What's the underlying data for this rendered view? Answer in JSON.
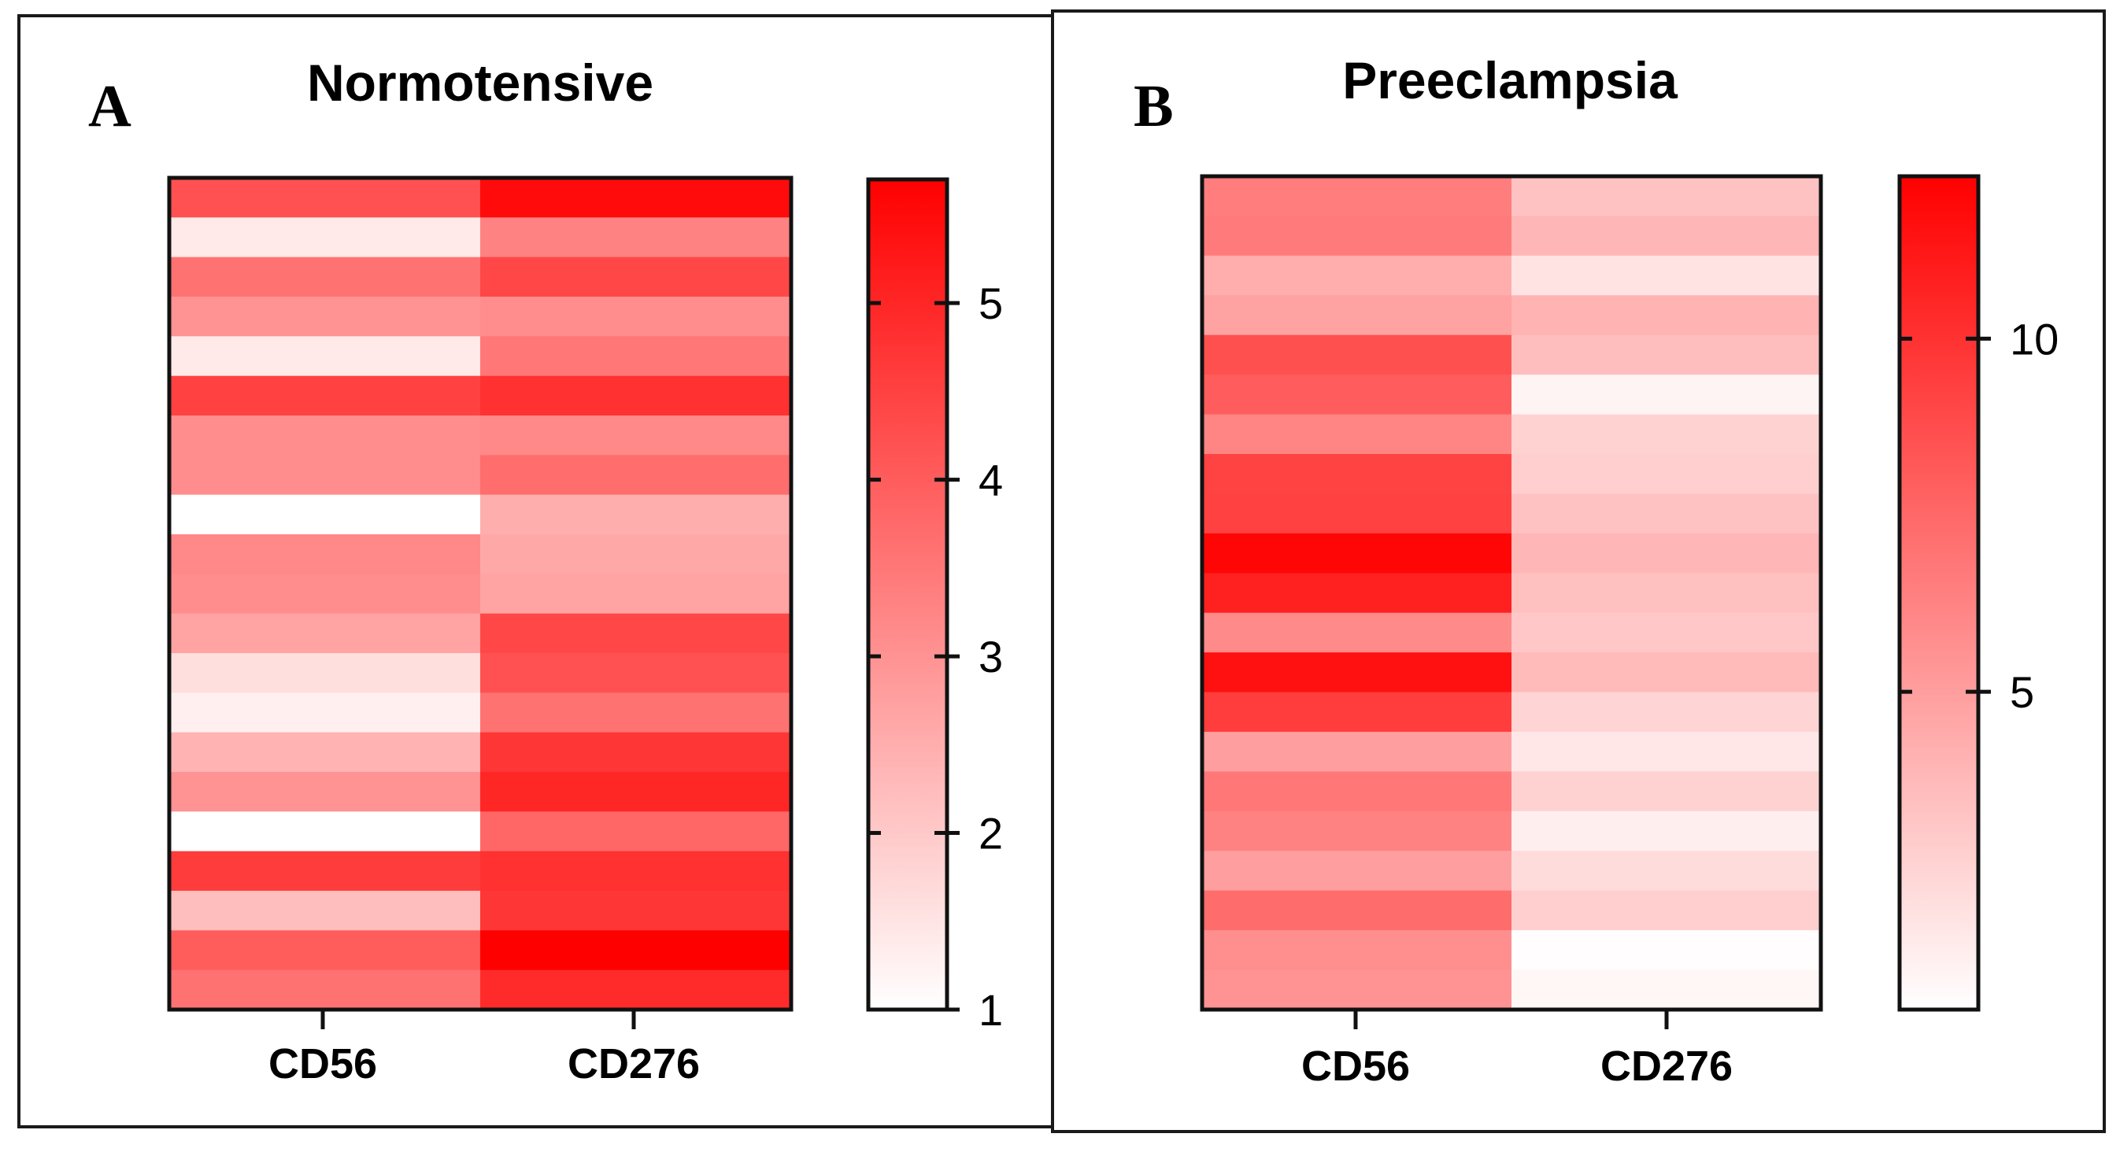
{
  "chart_data": [
    {
      "type": "heatmap",
      "panel_label": "A",
      "title": "Normotensive",
      "columns": [
        "CD56",
        "CD276"
      ],
      "rows": 21,
      "values": [
        [
          4.2,
          5.5
        ],
        [
          1.4,
          3.3
        ],
        [
          3.6,
          4.4
        ],
        [
          3.0,
          3.1
        ],
        [
          1.4,
          3.5
        ],
        [
          4.5,
          4.8
        ],
        [
          3.1,
          3.2
        ],
        [
          3.1,
          3.7
        ],
        [
          1.0,
          2.5
        ],
        [
          3.2,
          2.6
        ],
        [
          3.1,
          2.7
        ],
        [
          2.7,
          4.4
        ],
        [
          1.6,
          4.2
        ],
        [
          1.3,
          3.6
        ],
        [
          2.4,
          4.7
        ],
        [
          3.0,
          5.0
        ],
        [
          1.0,
          3.8
        ],
        [
          4.6,
          4.8
        ],
        [
          2.2,
          4.7
        ],
        [
          4.0,
          5.7
        ],
        [
          3.6,
          4.9
        ]
      ],
      "colorbar": {
        "min": 1,
        "max": 5.7,
        "ticks": [
          "1",
          "2",
          "3",
          "4",
          "5"
        ],
        "low_color": "#ffffff",
        "high_color": "#ff0000"
      }
    },
    {
      "type": "heatmap",
      "panel_label": "B",
      "title": "Preeclampsia",
      "columns": [
        "CD56",
        "CD276"
      ],
      "rows": 21,
      "values": [
        [
          6.5,
          3.3
        ],
        [
          6.6,
          3.9
        ],
        [
          4.3,
          1.8
        ],
        [
          4.8,
          4.0
        ],
        [
          8.6,
          3.5
        ],
        [
          8.0,
          1.0
        ],
        [
          6.2,
          2.6
        ],
        [
          9.2,
          2.7
        ],
        [
          9.3,
          3.3
        ],
        [
          12.0,
          3.9
        ],
        [
          10.8,
          3.4
        ],
        [
          5.9,
          3.1
        ],
        [
          11.5,
          3.7
        ],
        [
          9.5,
          2.5
        ],
        [
          5.0,
          1.6
        ],
        [
          6.8,
          2.6
        ],
        [
          6.3,
          1.3
        ],
        [
          5.0,
          2.1
        ],
        [
          7.3,
          2.7
        ],
        [
          5.7,
          0.6
        ],
        [
          5.5,
          0.9
        ]
      ],
      "colorbar": {
        "min": 0.5,
        "max": 12.3,
        "ticks": [
          "5",
          "10"
        ],
        "low_color": "#ffffff",
        "high_color": "#ff0000"
      }
    }
  ]
}
